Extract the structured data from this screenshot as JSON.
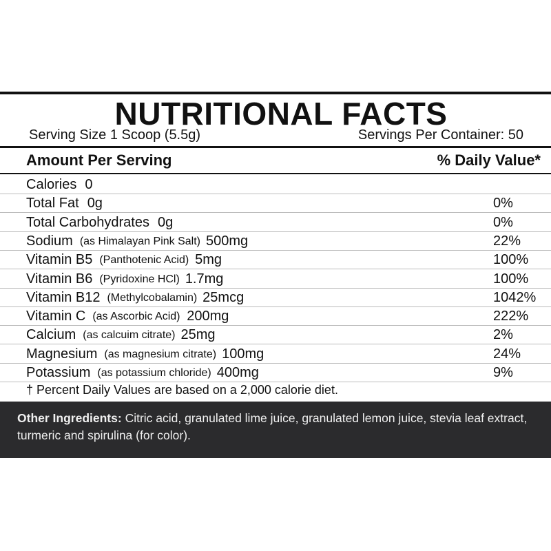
{
  "header": {
    "title": "NUTRITIONAL FACTS",
    "serving_size": "Serving Size 1 Scoop (5.5g)",
    "servings_per_container": "Servings Per Container: 50"
  },
  "table": {
    "columns": [
      "Amount Per Serving",
      "% Daily Value*"
    ],
    "rows": [
      {
        "name": "Calories",
        "amount": "0"
      },
      {
        "name": "Total Fat",
        "amount": "0g",
        "dv": "0%"
      },
      {
        "name": "Total Carbohydrates",
        "amount": "0g",
        "dv": "0%"
      },
      {
        "name": "Sodium",
        "note": "(as Himalayan Pink Salt)",
        "amount": "500mg",
        "dv": "22%"
      },
      {
        "name": "Vitamin B5",
        "note": "(Panthotenic Acid)",
        "amount": "5mg",
        "dv": "100%"
      },
      {
        "name": "Vitamin B6",
        "note": "(Pyridoxine HCl)",
        "amount": "1.7mg",
        "dv": "100%"
      },
      {
        "name": "Vitamin B12",
        "note": "(Methylcobalamin)",
        "amount": "25mcg",
        "dv": "1042%"
      },
      {
        "name": "Vitamin C",
        "note": "(as Ascorbic Acid)",
        "amount": "200mg",
        "dv": "222%"
      },
      {
        "name": "Calcium",
        "note": "(as calcuim citrate)",
        "amount": "25mg",
        "dv": "2%"
      },
      {
        "name": "Magnesium",
        "note": "(as magnesium citrate)",
        "amount": "100mg",
        "dv": "24%"
      },
      {
        "name": "Potassium",
        "note": "(as potassium chloride)",
        "amount": "400mg",
        "dv": "9%"
      }
    ]
  },
  "footnote": "† Percent Daily Values are based on a 2,000 calorie diet.",
  "other_ingredients": {
    "label": "Other Ingredients:",
    "text": "Citric acid, granulated lime juice, granulated lemon juice, stevia leaf extract, turmeric and spirulina (for color)."
  }
}
